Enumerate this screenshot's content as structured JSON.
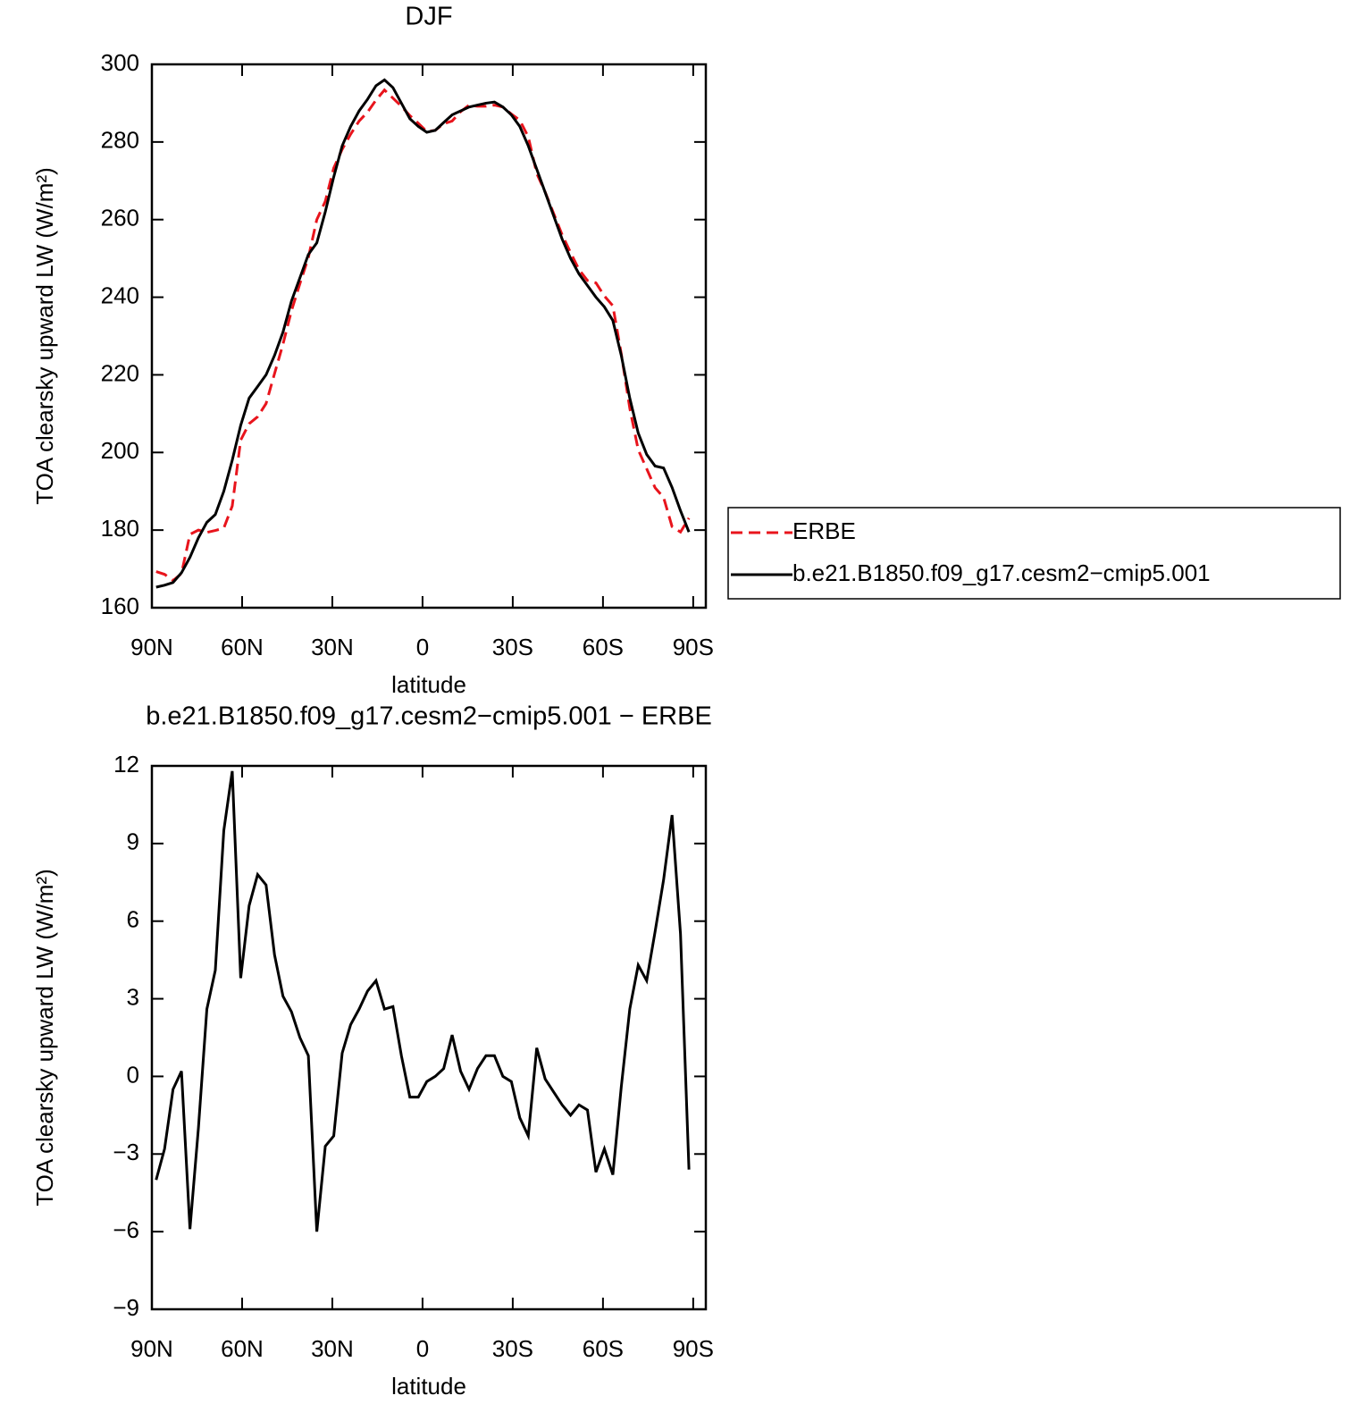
{
  "chart_data": [
    {
      "type": "line",
      "title": "DJF",
      "xlabel": "latitude",
      "ylabel": "TOA clearsky upward LW (W/m²)",
      "x": [
        88.59,
        85.78,
        82.97,
        80.16,
        77.34,
        74.53,
        71.72,
        68.91,
        66.09,
        63.28,
        60.47,
        57.66,
        54.84,
        52.03,
        49.22,
        46.41,
        43.59,
        40.78,
        37.97,
        35.16,
        32.34,
        29.53,
        26.72,
        23.91,
        21.09,
        18.28,
        15.47,
        12.66,
        9.84,
        7.03,
        4.22,
        1.41,
        -1.41,
        -4.22,
        -7.03,
        -9.84,
        -12.66,
        -15.47,
        -18.28,
        -21.09,
        -23.91,
        -26.72,
        -29.53,
        -32.34,
        -35.16,
        -37.97,
        -40.78,
        -43.59,
        -46.41,
        -49.22,
        -52.03,
        -54.84,
        -57.66,
        -60.47,
        -63.28,
        -66.09,
        -68.91,
        -71.72,
        -74.53,
        -77.34,
        -80.16,
        -82.97,
        -85.78,
        -88.59
      ],
      "series": [
        {
          "name": "ERBE",
          "color": "#e8141c",
          "dash": true,
          "values": [
            169.3,
            168.6,
            167.0,
            168.8,
            178.9,
            180.0,
            179.4,
            179.9,
            180.5,
            186.2,
            203.2,
            207.4,
            209.2,
            212.6,
            220.3,
            227.9,
            236.5,
            243.5,
            250.2,
            260.0,
            264.7,
            273.3,
            278.1,
            282.0,
            285.4,
            287.7,
            290.8,
            293.4,
            291.3,
            289.2,
            286.8,
            284.8,
            282.7,
            283.0,
            284.7,
            285.4,
            287.8,
            289.5,
            289.2,
            289.2,
            289.5,
            289.0,
            287.2,
            285.6,
            281.3,
            271.9,
            267.1,
            261.6,
            256.1,
            251.5,
            247.1,
            244.3,
            243.7,
            240.3,
            237.8,
            225.4,
            211.4,
            200.7,
            195.8,
            190.9,
            188.4,
            180.9,
            179.5,
            183.1
          ]
        },
        {
          "name": "b.e21.B1850.f09_g17.cesm2−cmip5.001",
          "color": "#000000",
          "dash": false,
          "values": [
            165.3,
            165.8,
            166.5,
            169,
            173,
            178,
            182,
            184,
            190,
            198,
            207,
            214,
            217,
            220,
            225,
            231,
            239,
            245,
            251,
            254,
            262,
            271,
            279,
            284,
            288,
            291,
            294.5,
            296,
            294,
            290,
            286,
            284,
            282.5,
            283,
            285,
            287,
            288,
            289,
            289.5,
            290,
            290.3,
            289,
            287,
            284,
            279,
            273,
            267,
            261,
            255,
            250,
            246,
            243,
            240,
            237.5,
            234,
            225,
            214,
            205,
            199.5,
            196.5,
            196,
            191,
            185,
            179.5
          ]
        }
      ],
      "xlim": [
        90,
        -94.2
      ],
      "xticks": [
        {
          "value": 90,
          "label": "90N"
        },
        {
          "value": 60,
          "label": "60N"
        },
        {
          "value": 30,
          "label": "30N"
        },
        0,
        {
          "value": -30,
          "label": "30S"
        },
        {
          "value": -60,
          "label": "60S"
        },
        {
          "value": -90,
          "label": "90S"
        }
      ],
      "ylim": [
        160,
        300
      ],
      "yticks": [
        160,
        180,
        200,
        220,
        240,
        260,
        280,
        300
      ],
      "legend": "right"
    },
    {
      "type": "line",
      "title": "b.e21.B1850.f09_g17.cesm2−cmip5.001 − ERBE",
      "xlabel": "latitude",
      "ylabel": "TOA clearsky upward LW (W/m²)",
      "x": [
        88.59,
        85.78,
        82.97,
        80.16,
        77.34,
        74.53,
        71.72,
        68.91,
        66.09,
        63.28,
        60.47,
        57.66,
        54.84,
        52.03,
        49.22,
        46.41,
        43.59,
        40.78,
        37.97,
        35.16,
        32.34,
        29.53,
        26.72,
        23.91,
        21.09,
        18.28,
        15.47,
        12.66,
        9.84,
        7.03,
        4.22,
        1.41,
        -1.41,
        -4.22,
        -7.03,
        -9.84,
        -12.66,
        -15.47,
        -18.28,
        -21.09,
        -23.91,
        -26.72,
        -29.53,
        -32.34,
        -35.16,
        -37.97,
        -40.78,
        -43.59,
        -46.41,
        -49.22,
        -52.03,
        -54.84,
        -57.66,
        -60.47,
        -63.28,
        -66.09,
        -68.91,
        -71.72,
        -74.53,
        -77.34,
        -80.16,
        -82.97,
        -85.78,
        -88.59
      ],
      "series": [
        {
          "color": "#000000",
          "dash": false,
          "values": [
            -4.0,
            -2.8,
            -0.5,
            0.2,
            -5.9,
            -2.0,
            2.6,
            4.1,
            9.5,
            11.8,
            3.8,
            6.6,
            7.8,
            7.4,
            4.7,
            3.1,
            2.5,
            1.5,
            0.8,
            -6.0,
            -2.7,
            -2.3,
            0.9,
            2.0,
            2.6,
            3.3,
            3.7,
            2.6,
            2.7,
            0.8,
            -0.8,
            -0.8,
            -0.2,
            0.0,
            0.3,
            1.6,
            0.2,
            -0.5,
            0.3,
            0.8,
            0.8,
            0.0,
            -0.2,
            -1.6,
            -2.3,
            1.1,
            -0.1,
            -0.6,
            -1.1,
            -1.5,
            -1.1,
            -1.3,
            -3.7,
            -2.8,
            -3.8,
            -0.4,
            2.6,
            4.3,
            3.7,
            5.6,
            7.6,
            10.1,
            5.5,
            -3.6
          ]
        }
      ],
      "xlim": [
        90,
        -94.2
      ],
      "xticks": [
        {
          "value": 90,
          "label": "90N"
        },
        {
          "value": 60,
          "label": "60N"
        },
        {
          "value": 30,
          "label": "30N"
        },
        0,
        {
          "value": -30,
          "label": "30S"
        },
        {
          "value": -60,
          "label": "60S"
        },
        {
          "value": -90,
          "label": "90S"
        }
      ],
      "ylim": [
        -9,
        12
      ],
      "yticks": [
        {
          "value": -9,
          "label": "−9"
        },
        {
          "value": -6,
          "label": "−6"
        },
        {
          "value": -3,
          "label": "−3"
        },
        0,
        3,
        6,
        9,
        12
      ]
    }
  ]
}
